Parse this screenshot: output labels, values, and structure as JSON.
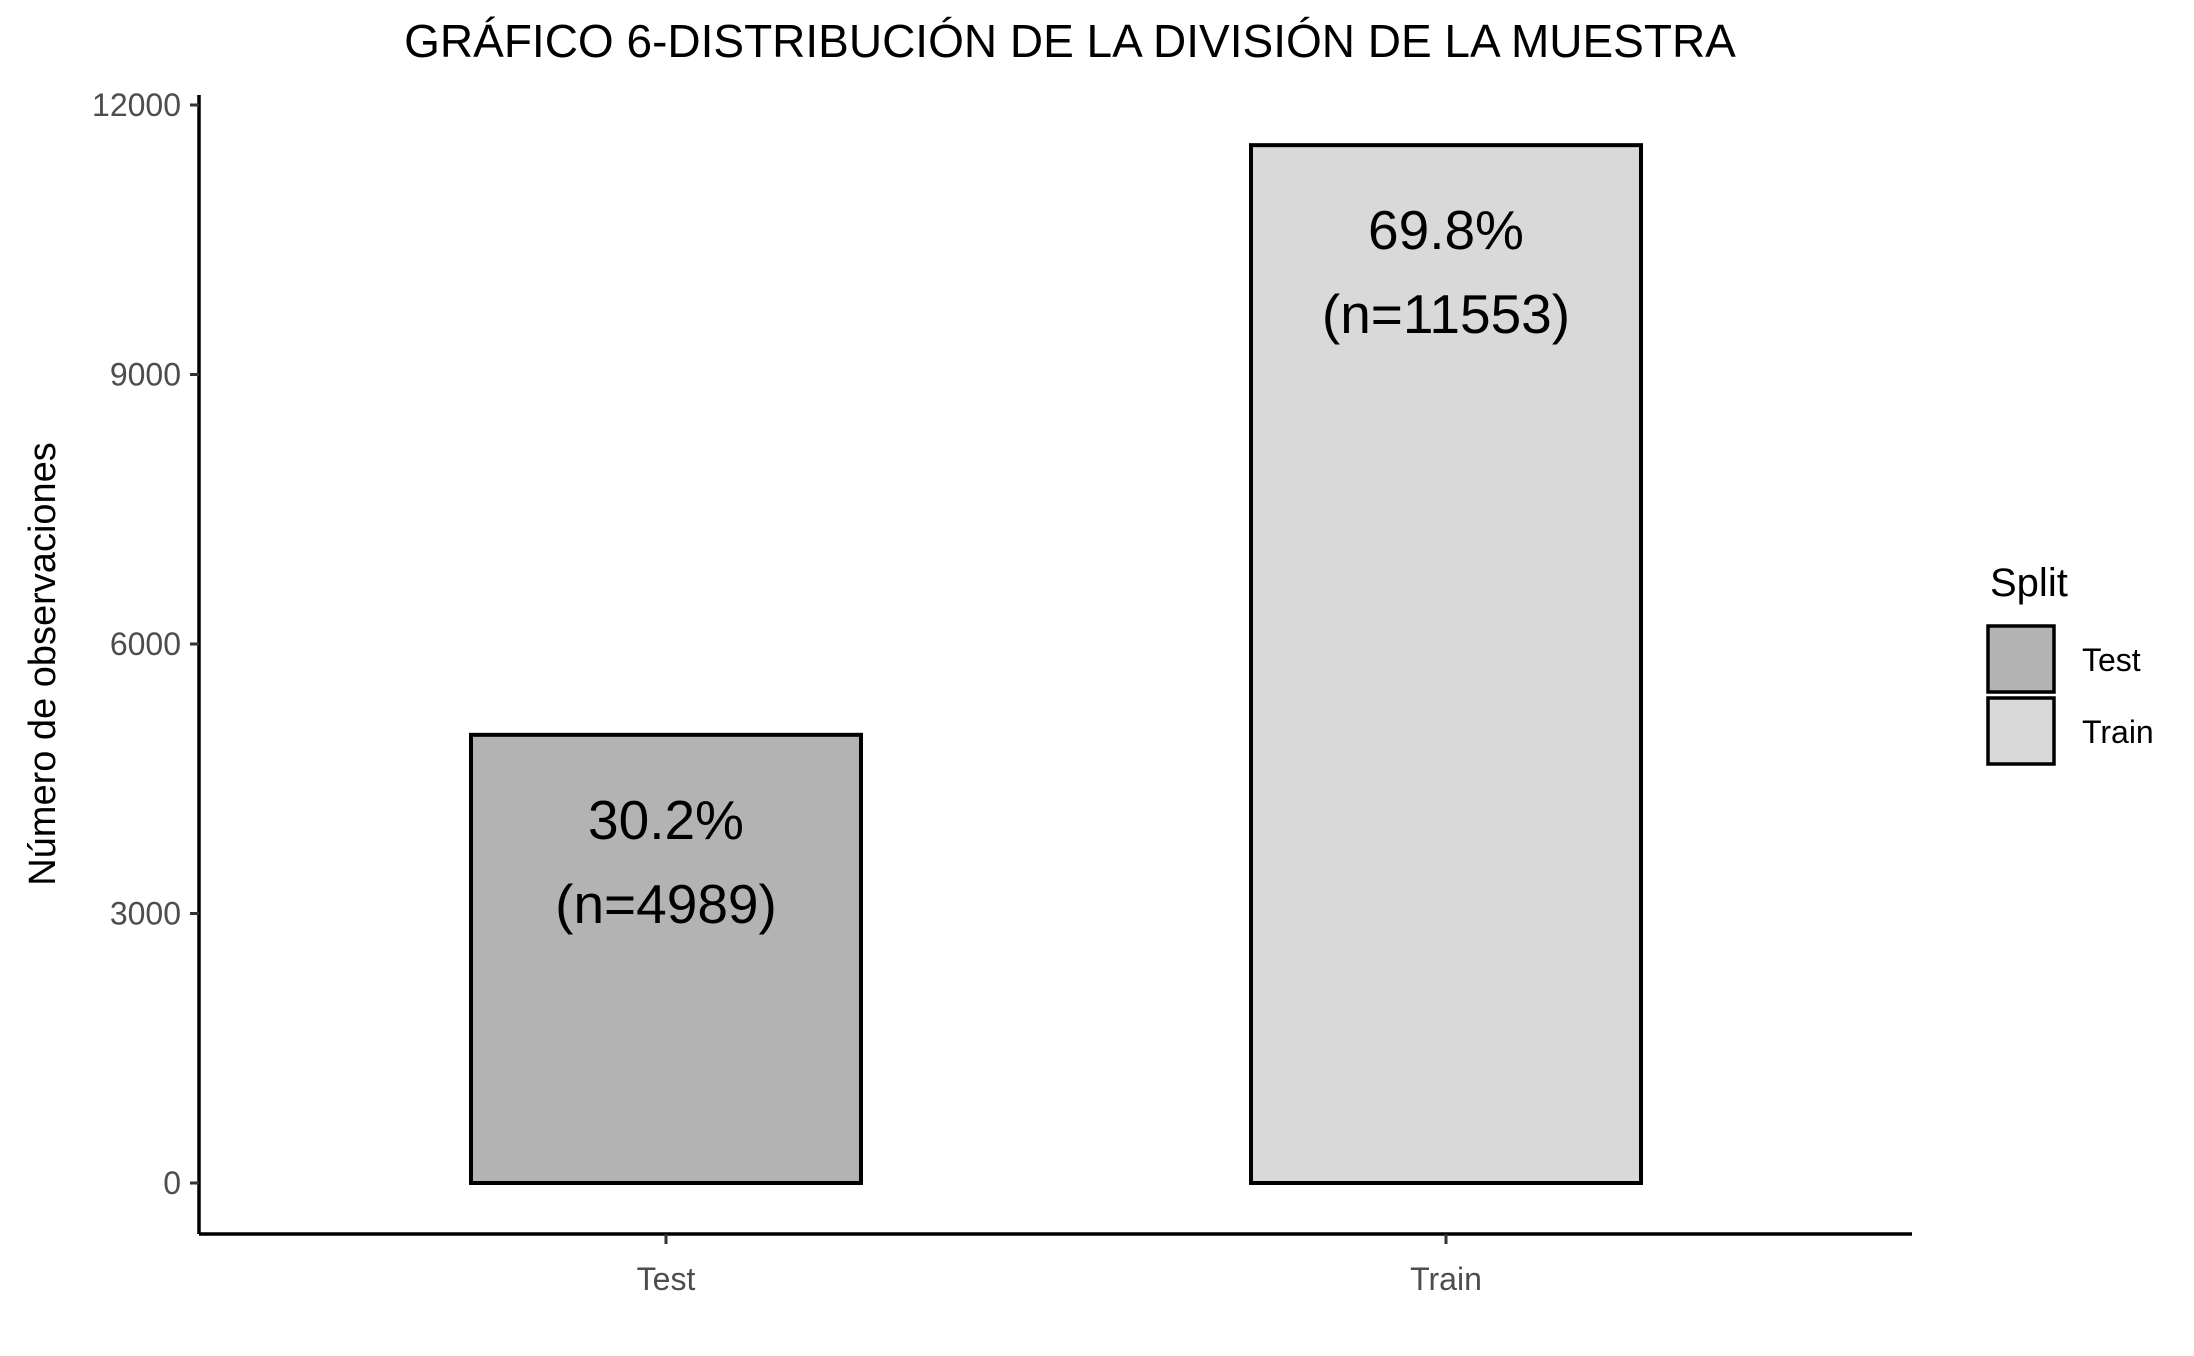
{
  "chart_data": {
    "type": "bar",
    "title": "GRÁFICO 6-DISTRIBUCIÓN DE LA DIVISIÓN DE LA MUESTRA",
    "xlabel": "",
    "ylabel": "Número de observaciones",
    "categories": [
      "Test",
      "Train"
    ],
    "values": [
      4989,
      11553
    ],
    "bar_labels": [
      {
        "line1": "30.2%",
        "line2": "(n=4989)"
      },
      {
        "line1": "69.8%",
        "line2": "(n=11553)"
      }
    ],
    "colors": [
      "#b3b3b3",
      "#d9d9d9"
    ],
    "ylim": [
      0,
      12000
    ],
    "yticks": [
      0,
      3000,
      6000,
      9000,
      12000
    ],
    "ytick_labels": [
      "0",
      "3000",
      "6000",
      "9000",
      "12000"
    ],
    "grid": false,
    "legend": {
      "title": "Split",
      "placement": "right",
      "entries": [
        {
          "label": "Test",
          "color": "#b3b3b3"
        },
        {
          "label": "Train",
          "color": "#d9d9d9"
        }
      ]
    }
  }
}
